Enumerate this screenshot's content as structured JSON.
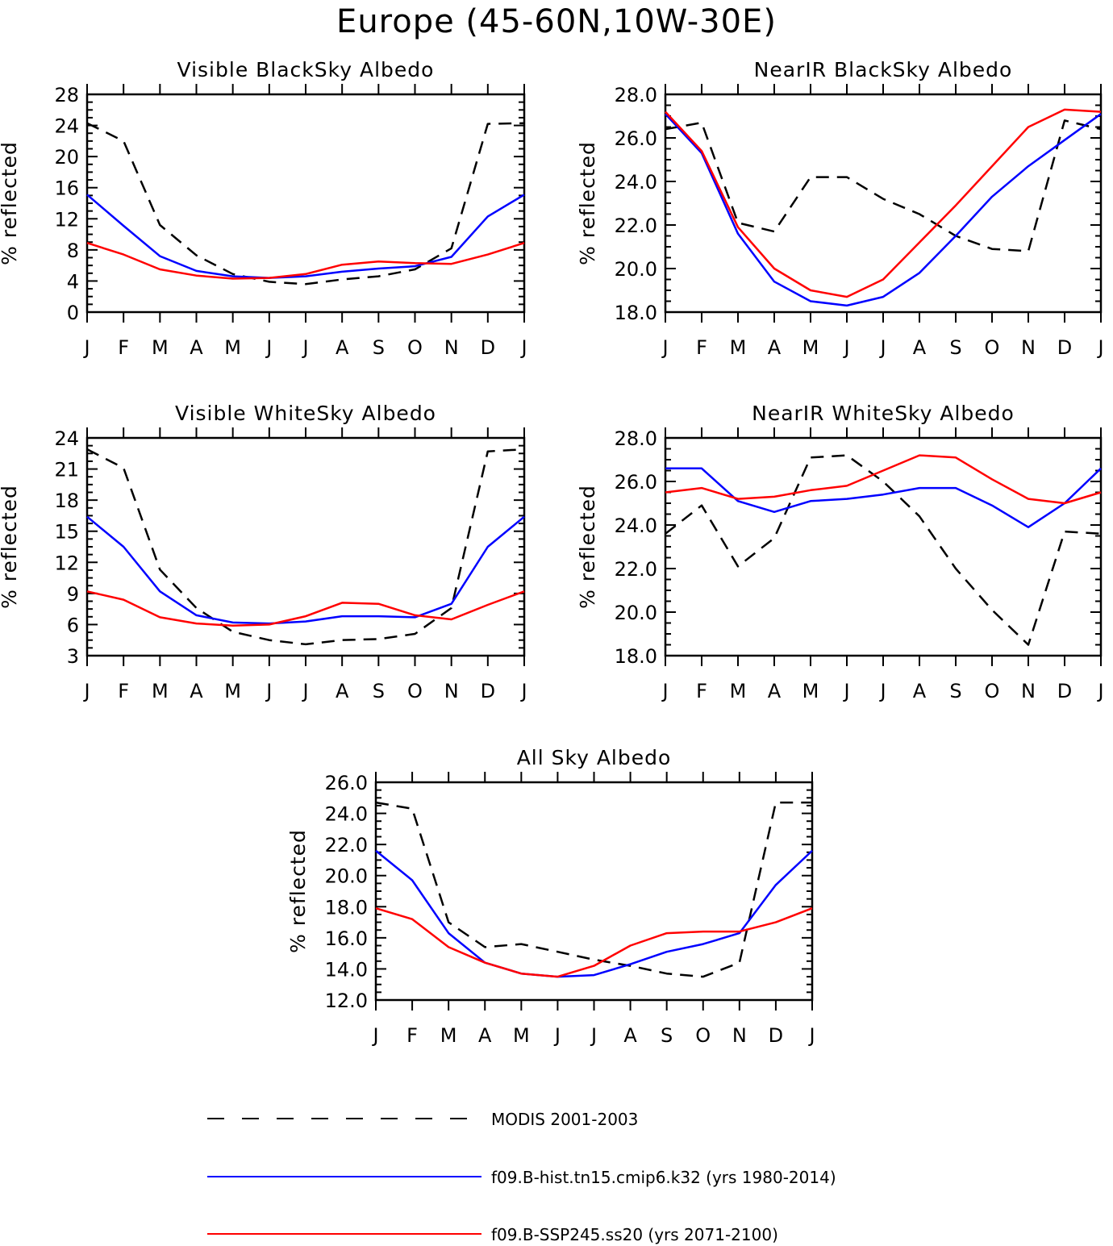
{
  "figure_title": "Europe (45-60N,10W-30E)",
  "chart_data": [
    {
      "type": "line",
      "title": "Visible BlackSky Albedo",
      "xlabel": "",
      "ylabel": "% reflected",
      "ylim": [
        0,
        28
      ],
      "yticks": [
        "0",
        "4",
        "8",
        "12",
        "16",
        "20",
        "24",
        "28"
      ],
      "categories": [
        "J",
        "F",
        "M",
        "A",
        "M",
        "J",
        "J",
        "A",
        "S",
        "O",
        "N",
        "D",
        "J"
      ],
      "series": [
        {
          "name": "MODIS 2001-2003",
          "color": "#000000",
          "dash": true,
          "values": [
            24.3,
            22.0,
            11.2,
            7.3,
            4.9,
            3.9,
            3.6,
            4.2,
            4.6,
            5.5,
            8.2,
            24.2,
            24.3
          ]
        },
        {
          "name": "f09.B-hist.tn15.cmip6.k32 (yrs 1980-2014)",
          "color": "#0000ff",
          "dash": false,
          "values": [
            15.1,
            11.1,
            7.2,
            5.3,
            4.6,
            4.4,
            4.6,
            5.2,
            5.6,
            5.9,
            7.1,
            12.3,
            15.1
          ]
        },
        {
          "name": "f09.B-SSP245.ss20 (yrs 2071-2100)",
          "color": "#ff0000",
          "dash": false,
          "values": [
            8.9,
            7.4,
            5.5,
            4.7,
            4.3,
            4.4,
            4.9,
            6.1,
            6.5,
            6.3,
            6.2,
            7.4,
            8.9
          ]
        }
      ]
    },
    {
      "type": "line",
      "title": "NearIR BlackSky Albedo",
      "xlabel": "",
      "ylabel": "% reflected",
      "ylim": [
        18,
        28
      ],
      "yticks": [
        "18.0",
        "20.0",
        "22.0",
        "24.0",
        "26.0",
        "28.0"
      ],
      "categories": [
        "J",
        "F",
        "M",
        "A",
        "M",
        "J",
        "J",
        "A",
        "S",
        "O",
        "N",
        "D",
        "J"
      ],
      "series": [
        {
          "name": "MODIS 2001-2003",
          "color": "#000000",
          "dash": true,
          "values": [
            26.4,
            26.7,
            22.1,
            21.7,
            24.2,
            24.2,
            23.2,
            22.5,
            21.5,
            20.9,
            20.8,
            26.8,
            26.4
          ]
        },
        {
          "name": "f09.B-hist.tn15.cmip6.k32 (yrs 1980-2014)",
          "color": "#0000ff",
          "dash": false,
          "values": [
            27.1,
            25.3,
            21.6,
            19.4,
            18.5,
            18.3,
            18.7,
            19.8,
            21.5,
            23.3,
            24.7,
            25.9,
            27.1
          ]
        },
        {
          "name": "f09.B-SSP245.ss20 (yrs 2071-2100)",
          "color": "#ff0000",
          "dash": false,
          "values": [
            27.2,
            25.4,
            21.9,
            20.0,
            19.0,
            18.7,
            19.5,
            21.2,
            22.9,
            24.7,
            26.5,
            27.3,
            27.2
          ]
        }
      ]
    },
    {
      "type": "line",
      "title": "Visible WhiteSky Albedo",
      "xlabel": "",
      "ylabel": "% reflected",
      "ylim": [
        3,
        24
      ],
      "yticks": [
        "3",
        "6",
        "9",
        "12",
        "15",
        "18",
        "21",
        "24"
      ],
      "categories": [
        "J",
        "F",
        "M",
        "A",
        "M",
        "J",
        "J",
        "A",
        "S",
        "O",
        "N",
        "D",
        "J"
      ],
      "series": [
        {
          "name": "MODIS 2001-2003",
          "color": "#000000",
          "dash": true,
          "values": [
            22.9,
            21.1,
            11.3,
            7.6,
            5.3,
            4.5,
            4.1,
            4.5,
            4.6,
            5.1,
            7.6,
            22.7,
            22.9
          ]
        },
        {
          "name": "f09.B-hist.tn15.cmip6.k32 (yrs 1980-2014)",
          "color": "#0000ff",
          "dash": false,
          "values": [
            16.4,
            13.5,
            9.2,
            6.9,
            6.2,
            6.1,
            6.3,
            6.8,
            6.8,
            6.7,
            8.0,
            13.5,
            16.4
          ]
        },
        {
          "name": "f09.B-SSP245.ss20 (yrs 2071-2100)",
          "color": "#ff0000",
          "dash": false,
          "values": [
            9.2,
            8.4,
            6.7,
            6.1,
            5.9,
            6.0,
            6.8,
            8.1,
            8.0,
            6.9,
            6.5,
            7.9,
            9.2
          ]
        }
      ]
    },
    {
      "type": "line",
      "title": "NearIR WhiteSky Albedo",
      "xlabel": "",
      "ylabel": "% reflected",
      "ylim": [
        18,
        28
      ],
      "yticks": [
        "18.0",
        "20.0",
        "22.0",
        "24.0",
        "26.0",
        "28.0"
      ],
      "categories": [
        "J",
        "F",
        "M",
        "A",
        "M",
        "J",
        "J",
        "A",
        "S",
        "O",
        "N",
        "D",
        "J"
      ],
      "series": [
        {
          "name": "MODIS 2001-2003",
          "color": "#000000",
          "dash": true,
          "values": [
            23.6,
            24.9,
            22.1,
            23.4,
            27.1,
            27.2,
            26.0,
            24.4,
            22.0,
            20.1,
            18.5,
            23.7,
            23.6
          ]
        },
        {
          "name": "f09.B-hist.tn15.cmip6.k32 (yrs 1980-2014)",
          "color": "#0000ff",
          "dash": false,
          "values": [
            26.6,
            26.6,
            25.1,
            24.6,
            25.1,
            25.2,
            25.4,
            25.7,
            25.7,
            24.9,
            23.9,
            25.0,
            26.6
          ]
        },
        {
          "name": "f09.B-SSP245.ss20 (yrs 2071-2100)",
          "color": "#ff0000",
          "dash": false,
          "values": [
            25.5,
            25.7,
            25.2,
            25.3,
            25.6,
            25.8,
            26.5,
            27.2,
            27.1,
            26.1,
            25.2,
            25.0,
            25.5
          ]
        }
      ]
    },
    {
      "type": "line",
      "title": "All Sky Albedo",
      "xlabel": "",
      "ylabel": "% reflected",
      "ylim": [
        12,
        26
      ],
      "yticks": [
        "12.0",
        "14.0",
        "16.0",
        "18.0",
        "20.0",
        "22.0",
        "24.0",
        "26.0"
      ],
      "categories": [
        "J",
        "F",
        "M",
        "A",
        "M",
        "J",
        "J",
        "A",
        "S",
        "O",
        "N",
        "D",
        "J"
      ],
      "series": [
        {
          "name": "MODIS 2001-2003",
          "color": "#000000",
          "dash": true,
          "values": [
            24.7,
            24.3,
            17.0,
            15.4,
            15.6,
            15.1,
            14.6,
            14.2,
            13.7,
            13.5,
            14.4,
            24.7,
            24.7
          ]
        },
        {
          "name": "f09.B-hist.tn15.cmip6.k32 (yrs 1980-2014)",
          "color": "#0000ff",
          "dash": false,
          "values": [
            21.6,
            19.7,
            16.3,
            14.4,
            13.7,
            13.5,
            13.6,
            14.3,
            15.1,
            15.6,
            16.3,
            19.4,
            21.6
          ]
        },
        {
          "name": "f09.B-SSP245.ss20 (yrs 2071-2100)",
          "color": "#ff0000",
          "dash": false,
          "values": [
            17.9,
            17.2,
            15.4,
            14.4,
            13.7,
            13.5,
            14.2,
            15.5,
            16.3,
            16.4,
            16.4,
            17.0,
            17.9
          ]
        }
      ]
    }
  ],
  "legend": [
    {
      "label": "MODIS 2001-2003",
      "color": "#000000",
      "dash": true
    },
    {
      "label": "f09.B-hist.tn15.cmip6.k32 (yrs 1980-2014)",
      "color": "#0000ff",
      "dash": false
    },
    {
      "label": "f09.B-SSP245.ss20 (yrs 2071-2100)",
      "color": "#ff0000",
      "dash": false
    }
  ]
}
